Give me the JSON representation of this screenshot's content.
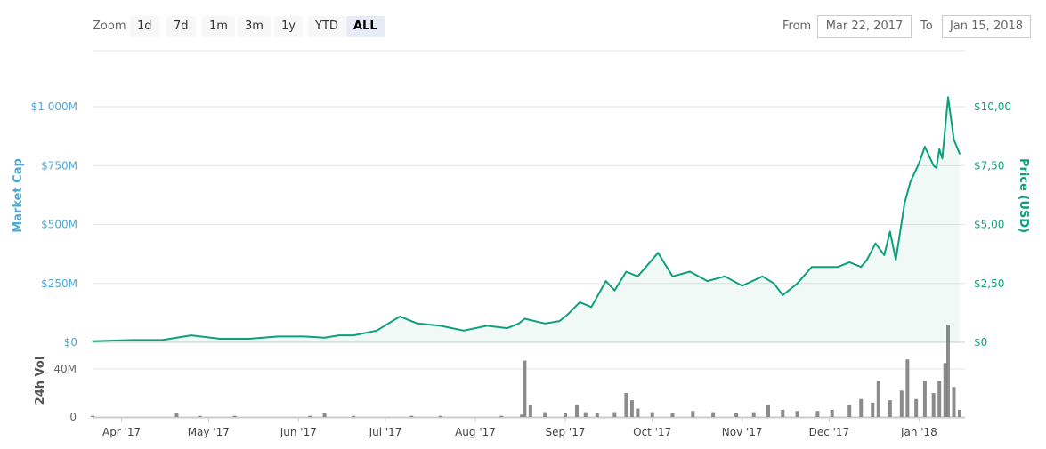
{
  "toolbar": {
    "zoom_label": "Zoom",
    "zoom_buttons": [
      "1d",
      "7d",
      "1m",
      "3m",
      "1y",
      "YTD",
      "ALL"
    ],
    "active_zoom": "ALL",
    "from_label": "From",
    "from_value": "Mar 22, 2017",
    "to_label": "To",
    "to_value": "Jan 15, 2018"
  },
  "colors": {
    "market_cap_axis": "#4da9d2",
    "price_line": "#0e9f7c",
    "volume_bars": "#777777",
    "grid": "#e6e6e6"
  },
  "chart_data": {
    "type": "line",
    "title": "",
    "left_axis_label": "Market Cap",
    "right_axis_label": "Price (USD)",
    "volume_axis_label": "24h Vol",
    "left_ticks": [
      "$0",
      "$250M",
      "$500M",
      "$750M",
      "$1 000M"
    ],
    "right_ticks": [
      "$0",
      "$2,50",
      "$5,00",
      "$7,50",
      "$10,00"
    ],
    "volume_ticks": [
      "0",
      "40M"
    ],
    "x_ticks": [
      {
        "date": "2017-04-01",
        "label": "Apr '17"
      },
      {
        "date": "2017-05-01",
        "label": "May '17"
      },
      {
        "date": "2017-06-01",
        "label": "Jun '17"
      },
      {
        "date": "2017-07-01",
        "label": "Jul '17"
      },
      {
        "date": "2017-08-01",
        "label": "Aug '17"
      },
      {
        "date": "2017-09-01",
        "label": "Sep '17"
      },
      {
        "date": "2017-10-01",
        "label": "Oct '17"
      },
      {
        "date": "2017-11-01",
        "label": "Nov '17"
      },
      {
        "date": "2017-12-01",
        "label": "Dec '17"
      },
      {
        "date": "2018-01-01",
        "label": "Jan '18"
      }
    ],
    "x_range": [
      "2017-03-22",
      "2018-01-15"
    ],
    "price_range": [
      0,
      10
    ],
    "volume_range": [
      0,
      60
    ],
    "volume_unit": "M",
    "grid": true,
    "price_series": {
      "name": "Price (USD)",
      "dates": [
        "2017-03-22",
        "2017-04-05",
        "2017-04-15",
        "2017-04-25",
        "2017-05-05",
        "2017-05-15",
        "2017-05-25",
        "2017-06-03",
        "2017-06-10",
        "2017-06-15",
        "2017-06-20",
        "2017-06-28",
        "2017-07-06",
        "2017-07-12",
        "2017-07-20",
        "2017-07-28",
        "2017-08-05",
        "2017-08-12",
        "2017-08-16",
        "2017-08-18",
        "2017-08-25",
        "2017-08-30",
        "2017-09-02",
        "2017-09-06",
        "2017-09-10",
        "2017-09-15",
        "2017-09-18",
        "2017-09-22",
        "2017-09-26",
        "2017-10-03",
        "2017-10-08",
        "2017-10-14",
        "2017-10-20",
        "2017-10-26",
        "2017-11-01",
        "2017-11-08",
        "2017-11-12",
        "2017-11-15",
        "2017-11-20",
        "2017-11-25",
        "2017-11-30",
        "2017-12-04",
        "2017-12-08",
        "2017-12-12",
        "2017-12-14",
        "2017-12-17",
        "2017-12-20",
        "2017-12-22",
        "2017-12-24",
        "2017-12-27",
        "2017-12-29",
        "2018-01-01",
        "2018-01-03",
        "2018-01-06",
        "2018-01-07",
        "2018-01-08",
        "2018-01-09",
        "2018-01-11",
        "2018-01-13",
        "2018-01-15"
      ],
      "values": [
        0.05,
        0.1,
        0.1,
        0.3,
        0.15,
        0.15,
        0.25,
        0.25,
        0.2,
        0.3,
        0.3,
        0.5,
        1.1,
        0.8,
        0.7,
        0.5,
        0.7,
        0.6,
        0.8,
        1.0,
        0.8,
        0.9,
        1.2,
        1.7,
        1.5,
        2.6,
        2.2,
        3.0,
        2.8,
        3.8,
        2.8,
        3.0,
        2.6,
        2.8,
        2.4,
        2.8,
        2.5,
        2.0,
        2.5,
        3.2,
        3.2,
        3.2,
        3.4,
        3.2,
        3.5,
        4.2,
        3.7,
        4.7,
        3.5,
        5.9,
        6.8,
        7.6,
        8.3,
        7.5,
        7.4,
        8.2,
        7.8,
        10.4,
        8.6,
        8.0
      ]
    },
    "volume_series": {
      "name": "24h Vol",
      "dates": [
        "2017-03-22",
        "2017-04-20",
        "2017-04-28",
        "2017-05-10",
        "2017-06-05",
        "2017-06-10",
        "2017-06-20",
        "2017-07-10",
        "2017-07-20",
        "2017-08-10",
        "2017-08-17",
        "2017-08-18",
        "2017-08-20",
        "2017-08-25",
        "2017-09-01",
        "2017-09-05",
        "2017-09-08",
        "2017-09-12",
        "2017-09-18",
        "2017-09-22",
        "2017-09-24",
        "2017-09-26",
        "2017-10-01",
        "2017-10-08",
        "2017-10-15",
        "2017-10-22",
        "2017-10-30",
        "2017-11-05",
        "2017-11-10",
        "2017-11-15",
        "2017-11-20",
        "2017-11-27",
        "2017-12-02",
        "2017-12-08",
        "2017-12-12",
        "2017-12-16",
        "2017-12-18",
        "2017-12-22",
        "2017-12-26",
        "2017-12-28",
        "2017-12-31",
        "2018-01-03",
        "2018-01-06",
        "2018-01-08",
        "2018-01-10",
        "2018-01-11",
        "2018-01-13",
        "2018-01-15"
      ],
      "values": [
        1,
        3,
        1,
        1,
        1,
        3,
        1,
        1,
        1,
        1,
        2,
        47,
        10,
        4,
        3,
        10,
        4,
        3,
        4,
        20,
        14,
        7,
        4,
        3,
        5,
        4,
        3,
        4,
        10,
        6,
        5,
        5,
        6,
        10,
        15,
        12,
        30,
        14,
        22,
        48,
        15,
        30,
        20,
        30,
        45,
        77,
        25,
        6
      ]
    }
  }
}
